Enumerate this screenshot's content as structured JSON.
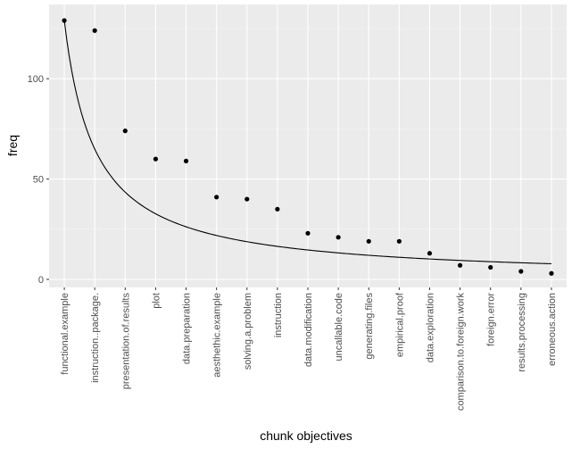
{
  "chart_data": {
    "type": "scatter",
    "xlabel": "chunk objectives",
    "ylabel": "freq",
    "categories": [
      "functional.example",
      "instruction..package.",
      "presentation.of.results",
      "plot",
      "data.preparation",
      "aesthethic.example",
      "solving.a.problem",
      "instruction",
      "data.modification",
      "uncallable.code",
      "generating.files",
      "empirical.proof",
      "data.exploration",
      "comparison.to.foreign.work",
      "foreign.error",
      "results.processing",
      "erroneous.action"
    ],
    "series": [
      {
        "kind": "points",
        "values": [
          129,
          124,
          74,
          60,
          59,
          41,
          40,
          35,
          23,
          21,
          19,
          19,
          13,
          7,
          6,
          4,
          3
        ]
      },
      {
        "kind": "fitted-curve",
        "formula": "freq = 129 / rank^0.99"
      }
    ],
    "ylim": [
      -4,
      137
    ],
    "yticks": [
      0,
      50,
      100
    ],
    "grid": true,
    "legend": "none",
    "colors": {
      "panel": "#ebebeb",
      "grid_major": "#ffffff",
      "grid_minor": "#f5f5f5",
      "points": "#000000",
      "curve": "#000000",
      "tick_text": "#4d4d4d"
    }
  }
}
